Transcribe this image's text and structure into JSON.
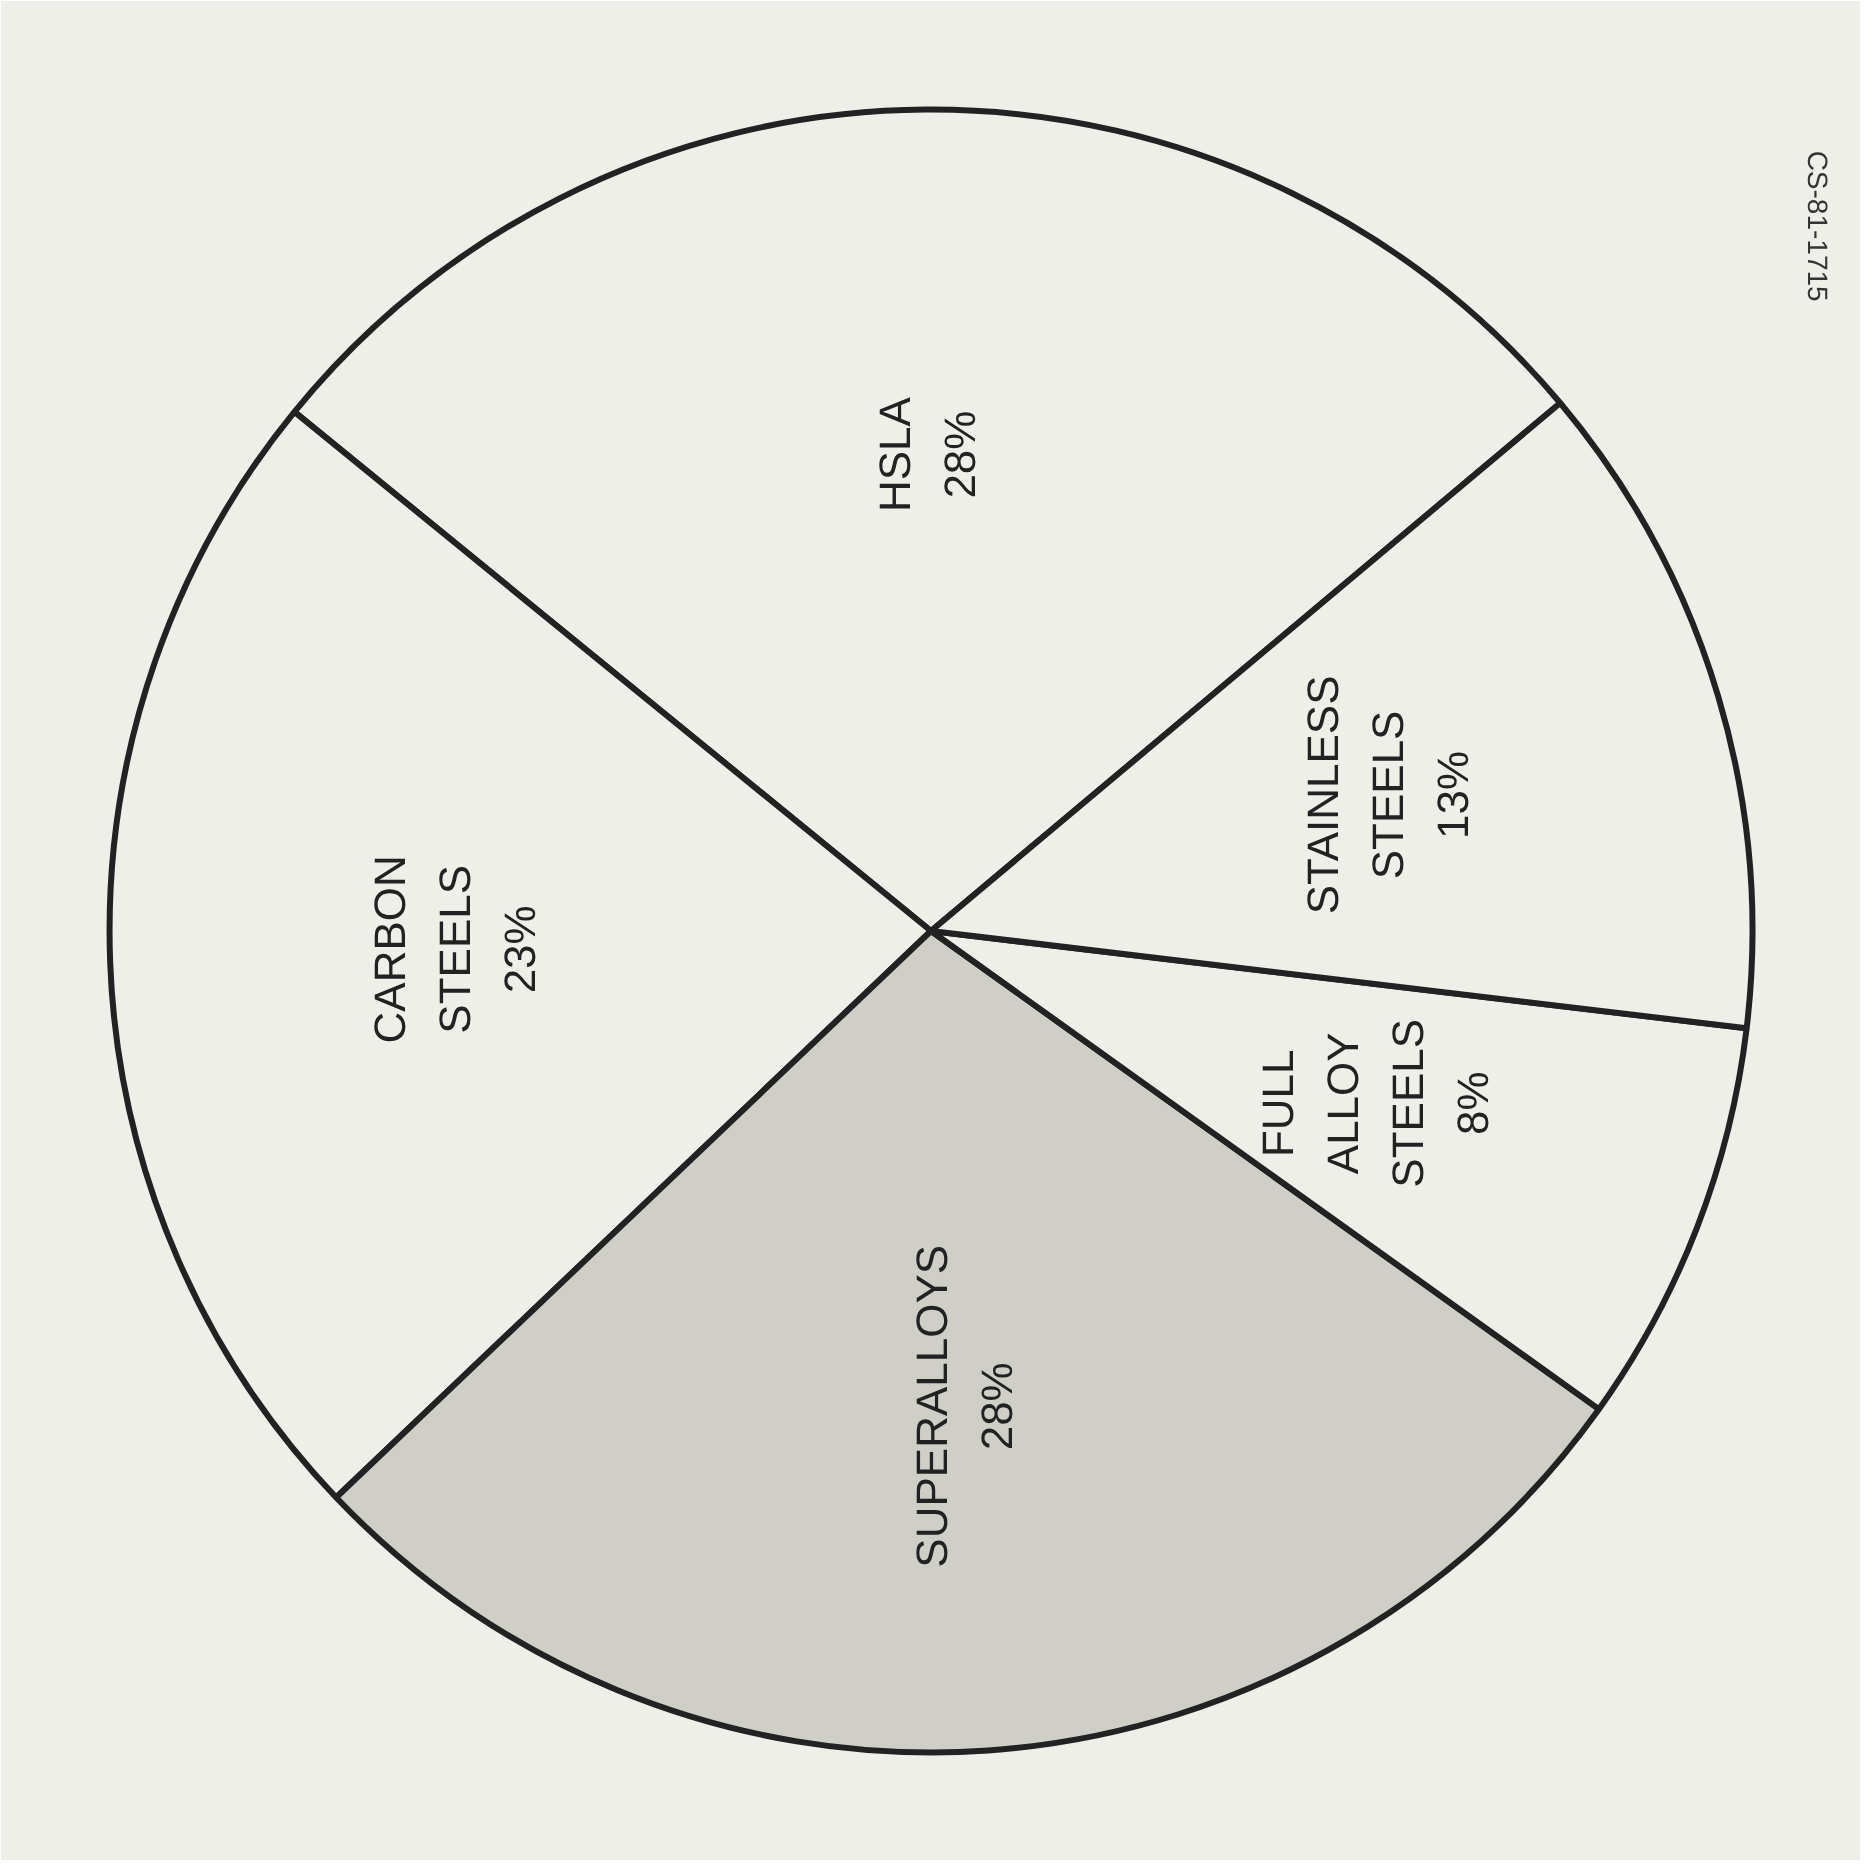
{
  "chart_data": {
    "type": "pie",
    "categories": [
      "HSLA",
      "CARBON STEELS",
      "SUPERALLOYS",
      "FULL ALLOY STEELS",
      "STAINLESS STEELS"
    ],
    "values": [
      28,
      23,
      28,
      8,
      13
    ],
    "colors": [
      "#efefea",
      "#efefea",
      "#cfcfc8",
      "#efefea",
      "#efefea"
    ],
    "value_labels": [
      "28%",
      "23%",
      "28%",
      "8%",
      "13%"
    ],
    "annotations": [
      "CS-81-1715"
    ]
  }
}
